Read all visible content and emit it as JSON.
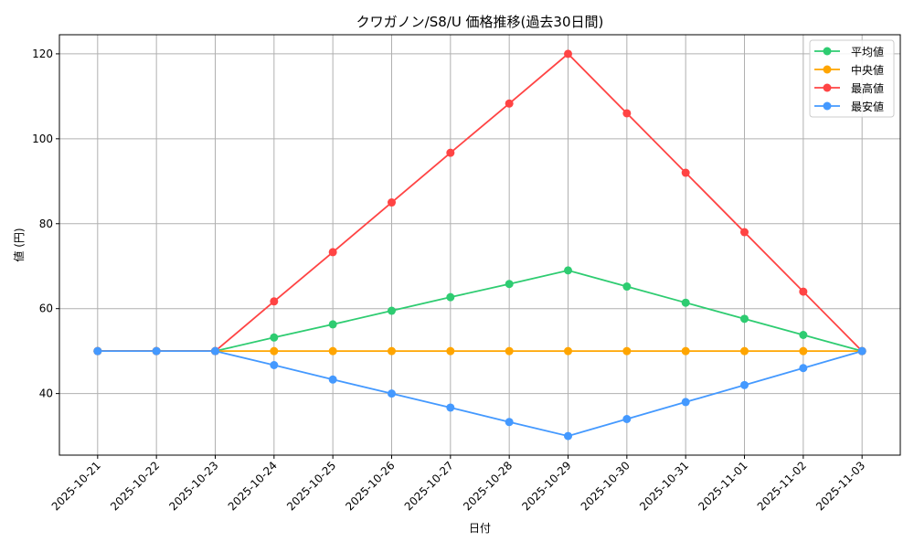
{
  "chart_data": {
    "type": "line",
    "title": "クワガノン/S8/U 価格推移(過去30日間)",
    "xlabel": "日付",
    "ylabel": "値 (円)",
    "categories": [
      "2025-10-21",
      "2025-10-22",
      "2025-10-23",
      "2025-10-24",
      "2025-10-25",
      "2025-10-26",
      "2025-10-27",
      "2025-10-28",
      "2025-10-29",
      "2025-10-30",
      "2025-10-31",
      "2025-11-01",
      "2025-11-02",
      "2025-11-03"
    ],
    "ylim": [
      25.5,
      124.5
    ],
    "yticks": [
      40,
      60,
      80,
      100,
      120
    ],
    "grid": true,
    "legend_position": "top-right",
    "series": [
      {
        "name": "平均値",
        "color": "#2ecc71",
        "values": [
          50,
          50,
          50,
          53.2,
          56.3,
          59.5,
          62.7,
          65.8,
          69.0,
          65.2,
          61.4,
          57.6,
          53.8,
          50
        ]
      },
      {
        "name": "中央値",
        "color": "#ffa500",
        "values": [
          50,
          50,
          50,
          50,
          50,
          50,
          50,
          50,
          50,
          50,
          50,
          50,
          50,
          50
        ]
      },
      {
        "name": "最高値",
        "color": "#ff4444",
        "values": [
          50,
          50,
          50,
          61.7,
          73.3,
          85.0,
          96.7,
          108.3,
          120,
          106,
          92,
          78,
          64,
          50
        ]
      },
      {
        "name": "最安値",
        "color": "#4499ff",
        "values": [
          50,
          50,
          50,
          46.7,
          43.3,
          40.0,
          36.7,
          33.3,
          30,
          34,
          38,
          42,
          46,
          50
        ]
      }
    ]
  }
}
